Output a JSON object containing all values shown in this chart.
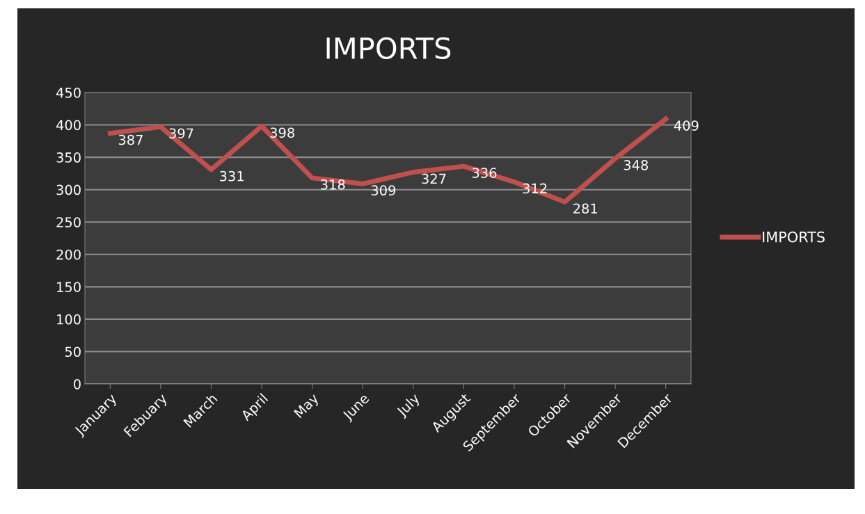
{
  "chart_data": {
    "type": "line",
    "title": "IMPORTS",
    "categories": [
      "January",
      "Febuary",
      "March",
      "April",
      "May",
      "June",
      "July",
      "August",
      "September",
      "October",
      "November",
      "December"
    ],
    "series": [
      {
        "name": "IMPORTS",
        "color": "#c0504d",
        "values": [
          387,
          397,
          331,
          398,
          318,
          309,
          327,
          336,
          312,
          281,
          348,
          409
        ]
      }
    ],
    "ylim": [
      0,
      450
    ],
    "yticks": [
      0,
      50,
      100,
      150,
      200,
      250,
      300,
      350,
      400,
      450
    ],
    "grid": "y",
    "legend": "right",
    "data_labels": true,
    "marker": "none",
    "line_style": "solid"
  }
}
